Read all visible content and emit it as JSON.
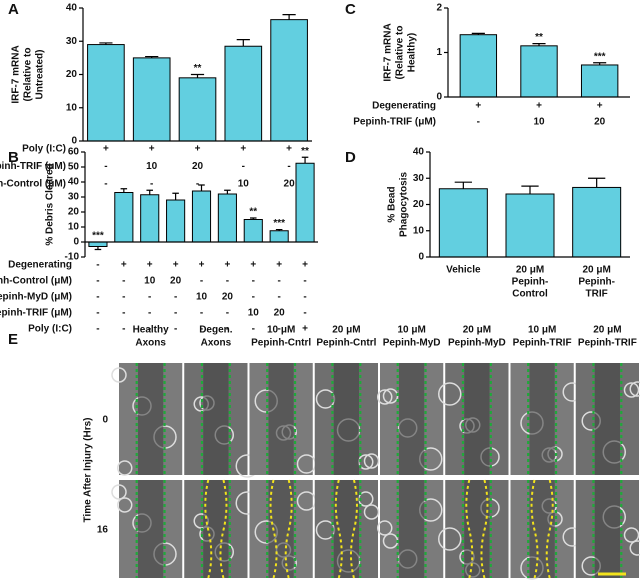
{
  "chart_data": [
    {
      "type": "bar",
      "panel": "A",
      "ylabel": [
        "IRF-7 mRNA",
        "(Relative to",
        "Untreated)"
      ],
      "values": [
        29,
        25,
        19,
        28.5,
        36.5
      ],
      "errors": [
        0.5,
        0.4,
        1,
        2,
        1.5
      ],
      "annotations": [
        null,
        null,
        "**",
        null,
        null
      ],
      "color": "#62cfe0",
      "ylim": [
        0,
        40
      ],
      "yticks": [
        0,
        10,
        20,
        30,
        40
      ],
      "conditions": [
        {
          "label": "Poly (I:C)",
          "values": [
            "+",
            "+",
            "+",
            "+",
            "+"
          ]
        },
        {
          "label": "Pepinh-TRIF (μM)",
          "values": [
            "-",
            "10",
            "20",
            "-",
            "-"
          ]
        },
        {
          "label": "Pepinh-Control (μM)",
          "values": [
            "-",
            "-",
            "-",
            "10",
            "20"
          ]
        }
      ]
    },
    {
      "type": "bar",
      "panel": "B",
      "ylabel": [
        "% Debris Cleared"
      ],
      "values": [
        -3,
        33,
        31.5,
        28,
        34,
        32,
        15,
        7.5,
        52.5
      ],
      "errors": [
        2,
        2.5,
        3,
        4.5,
        4,
        2.5,
        1,
        0.8,
        4
      ],
      "annotations": [
        "***",
        null,
        null,
        null,
        null,
        null,
        "**",
        "***",
        "**"
      ],
      "color": "#62cfe0",
      "ylim": [
        -10,
        60
      ],
      "yticks": [
        -10,
        0,
        10,
        20,
        30,
        40,
        50,
        60
      ],
      "conditions": [
        {
          "label": "Degenerating",
          "values": [
            "-",
            "+",
            "+",
            "+",
            "+",
            "+",
            "+",
            "+",
            "+"
          ]
        },
        {
          "label": "Pepinh-Control (μM)",
          "values": [
            "-",
            "-",
            "10",
            "20",
            "-",
            "-",
            "-",
            "-",
            "-"
          ]
        },
        {
          "label": "Pepinh-MyD (μM)",
          "values": [
            "-",
            "-",
            "-",
            "-",
            "10",
            "20",
            "-",
            "-",
            "-"
          ]
        },
        {
          "label": "Pepinh-TRIF (μM)",
          "values": [
            "-",
            "-",
            "-",
            "-",
            "-",
            "-",
            "10",
            "20",
            "-"
          ]
        },
        {
          "label": "Poly (I:C)",
          "values": [
            "-",
            "-",
            "-",
            "-",
            "-",
            "-",
            "-",
            "-",
            "+"
          ]
        }
      ]
    },
    {
      "type": "bar",
      "panel": "C",
      "ylabel": [
        "IRF-7 mRNA",
        "(Relative to",
        "Healthy)"
      ],
      "values": [
        1.4,
        1.15,
        0.72
      ],
      "errors": [
        0.03,
        0.05,
        0.05
      ],
      "annotations": [
        null,
        "**",
        "***"
      ],
      "color": "#62cfe0",
      "ylim": [
        0,
        2
      ],
      "yticks": [
        0,
        1,
        2
      ],
      "conditions": [
        {
          "label": "Degenerating",
          "values": [
            "+",
            "+",
            "+"
          ]
        },
        {
          "label": "Pepinh-TRIF (μM)",
          "values": [
            "-",
            "10",
            "20"
          ]
        }
      ]
    },
    {
      "type": "bar",
      "panel": "D",
      "ylabel": [
        "% Bead",
        "Phagocytosis"
      ],
      "categories": [
        [
          "Vehicle"
        ],
        [
          "20 μM",
          "Pepinh-",
          "Control"
        ],
        [
          "20 μM",
          "Pepinh-",
          "TRIF"
        ]
      ],
      "values": [
        26,
        24,
        26.5
      ],
      "errors": [
        2.5,
        3,
        3.5
      ],
      "color": "#62cfe0",
      "ylim": [
        0,
        40
      ],
      "yticks": [
        0,
        10,
        20,
        30,
        40
      ]
    }
  ],
  "micrographs": {
    "panel": "E",
    "ylabel": "Time After Injury (Hrs)",
    "columns": [
      [
        "Healthy",
        "Axons"
      ],
      [
        "Degen.",
        "Axons"
      ],
      [
        "10 μM",
        "Pepinh-Cntrl"
      ],
      [
        "20 μM",
        "Pepinh-Cntrl"
      ],
      [
        "10 μM",
        "Pepinh-MyD"
      ],
      [
        "20 μM",
        "Pepinh-MyD"
      ],
      [
        "10 μM",
        "Pepinh-TRIF"
      ],
      [
        "20 μM",
        "Pepinh-TRIF"
      ]
    ],
    "rows": [
      "0",
      "16"
    ]
  }
}
